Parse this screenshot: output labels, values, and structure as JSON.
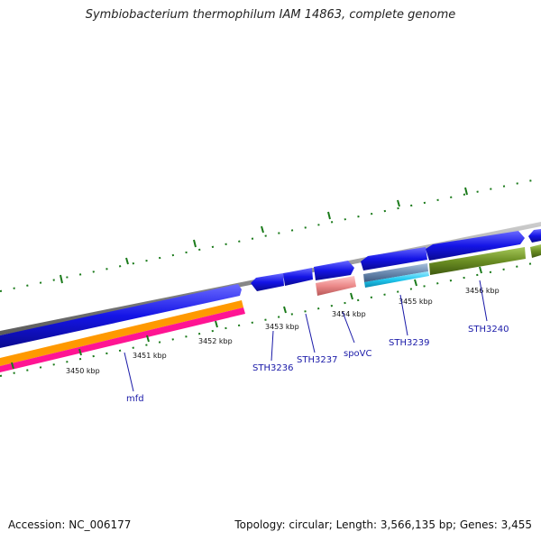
{
  "title": "Symbiobacterium thermophilum IAM 14863, complete genome",
  "footer": {
    "accession": "Accession: NC_006177",
    "topology": "Topology: circular; Length: 3,566,135 bp; Genes: 3,455"
  },
  "ticks": [
    "3450 kbp",
    "3451 kbp",
    "3452 kbp",
    "3453 kbp",
    "3454 kbp",
    "3455 kbp",
    "3456 kbp"
  ],
  "genes": [
    "mfd",
    "STH3236",
    "STH3237",
    "spoVC",
    "STH3239",
    "STH3240"
  ],
  "colors": {
    "cds": "#1414e6",
    "backbone": "#8c8c8c",
    "rna_pink": "#ec8a8a",
    "cyan": "#20c8f0",
    "olive": "#6b8e23",
    "orange": "#ff9900",
    "magenta": "#ff1493",
    "tick": "#1a7a1a",
    "label": "#1a1aa8"
  }
}
